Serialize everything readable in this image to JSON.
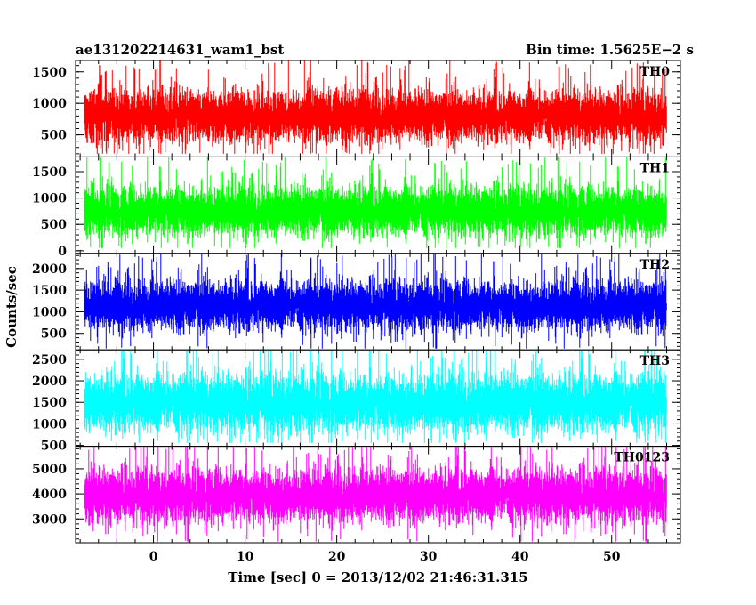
{
  "header": {
    "title_left": "ae131202214631_wam1_bst",
    "title_right": "Bin time: 1.5625E−2 s"
  },
  "chart_data": {
    "type": "line",
    "title": "ae131202214631_wam1_bst",
    "subtitle": "Bin time: 1.5625E−2 s",
    "xlabel": "Time [sec] 0 = 2013/12/02 21:46:31.315",
    "ylabel": "Counts/sec",
    "xlim": [
      -8.5,
      57.5
    ],
    "x_ticks": [
      0,
      10,
      20,
      30,
      40,
      50
    ],
    "x_tick_labels": [
      "0",
      "10",
      "20",
      "30",
      "40",
      "50"
    ],
    "data_x_range": [
      -7.5,
      56
    ],
    "bin_time": 0.015625,
    "grid": false,
    "panels": [
      {
        "name": "TH0",
        "color": "#ff0000",
        "ylim": [
          150,
          1680
        ],
        "y_ticks": [
          500,
          1000,
          1500
        ],
        "y_tick_labels": [
          "500",
          "1000",
          "1500"
        ],
        "mean": 800,
        "sigma": 200,
        "floor": 200,
        "ceil": 1680
      },
      {
        "name": "TH1",
        "color": "#00ff00",
        "ylim": [
          -50,
          1780
        ],
        "y_ticks": [
          0,
          500,
          1000,
          1500
        ],
        "y_tick_labels": [
          "0",
          "500",
          "1000",
          "1500"
        ],
        "mean": 760,
        "sigma": 230,
        "floor": 50,
        "ceil": 1780
      },
      {
        "name": "TH2",
        "color": "#0000ff",
        "ylim": [
          120,
          2350
        ],
        "y_ticks": [
          500,
          1000,
          1500,
          2000
        ],
        "y_tick_labels": [
          "500",
          "1000",
          "1500",
          "2000"
        ],
        "mean": 1150,
        "sigma": 280,
        "floor": 150,
        "ceil": 2350
      },
      {
        "name": "TH3",
        "color": "#00ffff",
        "ylim": [
          480,
          2720
        ],
        "y_ticks": [
          500,
          1000,
          1500,
          2000,
          2500
        ],
        "y_tick_labels": [
          "500",
          "1000",
          "1500",
          "2000",
          "2500"
        ],
        "mean": 1500,
        "sigma": 330,
        "floor": 560,
        "ceil": 2720
      },
      {
        "name": "TH0123",
        "color": "#ff00ff",
        "ylim": [
          2050,
          5900
        ],
        "y_ticks": [
          3000,
          4000,
          5000
        ],
        "y_tick_labels": [
          "3000",
          "4000",
          "5000"
        ],
        "mean": 3950,
        "sigma": 520,
        "floor": 2100,
        "ceil": 5900
      }
    ]
  }
}
